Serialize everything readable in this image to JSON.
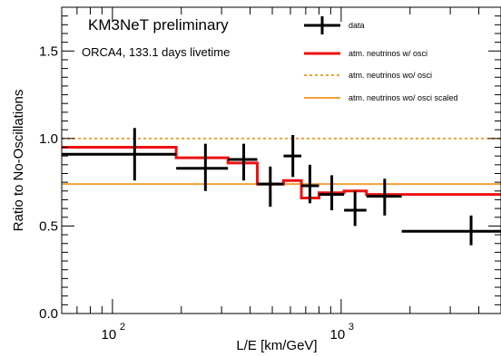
{
  "chart_data": {
    "type": "line",
    "xlabel": "L/E [km/GeV]",
    "ylabel": "Ratio to No-Oscillations",
    "xscale": "log",
    "xlim": [
      60,
      5000
    ],
    "ylim": [
      0,
      1.75
    ],
    "grid": false,
    "legend_position": "top-right",
    "y_ticks": [
      {
        "value": 0.0,
        "label": "0.0"
      },
      {
        "value": 0.5,
        "label": "0.5"
      },
      {
        "value": 1.0,
        "label": "1.0"
      },
      {
        "value": 1.5,
        "label": "1.5"
      }
    ],
    "x_ticks": [
      {
        "value": 100,
        "base": "10",
        "exp": "2"
      },
      {
        "value": 1000,
        "base": "10",
        "exp": "3"
      }
    ],
    "annotations": [
      {
        "text": "KM3NeT preliminary",
        "style": "big"
      },
      {
        "text": "ORCA4, 133.1 days livetime",
        "style": "small"
      }
    ],
    "series": [
      {
        "name": "data",
        "kind": "points",
        "color": "#000000",
        "points": [
          {
            "x": 125,
            "xlo": 60,
            "xhi": 190,
            "y": 0.91,
            "ylo": 0.76,
            "yhi": 1.06
          },
          {
            "x": 255,
            "xlo": 190,
            "xhi": 320,
            "y": 0.83,
            "ylo": 0.7,
            "yhi": 0.97
          },
          {
            "x": 375,
            "xlo": 320,
            "xhi": 430,
            "y": 0.88,
            "ylo": 0.76,
            "yhi": 0.97
          },
          {
            "x": 490,
            "xlo": 430,
            "xhi": 560,
            "y": 0.74,
            "ylo": 0.61,
            "yhi": 0.84
          },
          {
            "x": 615,
            "xlo": 560,
            "xhi": 670,
            "y": 0.9,
            "ylo": 0.78,
            "yhi": 1.02
          },
          {
            "x": 730,
            "xlo": 670,
            "xhi": 800,
            "y": 0.73,
            "ylo": 0.63,
            "yhi": 0.85
          },
          {
            "x": 910,
            "xlo": 800,
            "xhi": 1030,
            "y": 0.68,
            "ylo": 0.59,
            "yhi": 0.79
          },
          {
            "x": 1150,
            "xlo": 1030,
            "xhi": 1290,
            "y": 0.59,
            "ylo": 0.5,
            "yhi": 0.7
          },
          {
            "x": 1550,
            "xlo": 1290,
            "xhi": 1840,
            "y": 0.67,
            "ylo": 0.56,
            "yhi": 0.77
          },
          {
            "x": 3700,
            "xlo": 1840,
            "xhi": 5000,
            "y": 0.47,
            "ylo": 0.39,
            "yhi": 0.56
          }
        ]
      },
      {
        "name": "atm. neutrinos w/ osci",
        "kind": "step",
        "color": "#ee1111",
        "edges": [
          60,
          190,
          320,
          430,
          560,
          670,
          800,
          1030,
          1290,
          1840,
          5000
        ],
        "values": [
          0.95,
          0.89,
          0.86,
          0.74,
          0.76,
          0.66,
          0.69,
          0.7,
          0.68,
          0.68
        ]
      },
      {
        "name": "atm. neutrinos wo/ osci",
        "kind": "hline",
        "color": "#f5a03a",
        "dashed": true,
        "y": 1.0
      },
      {
        "name": "atm. neutrinos wo/ osci scaled",
        "kind": "hline",
        "color": "#f5a03a",
        "dashed": false,
        "y": 0.74
      }
    ]
  }
}
